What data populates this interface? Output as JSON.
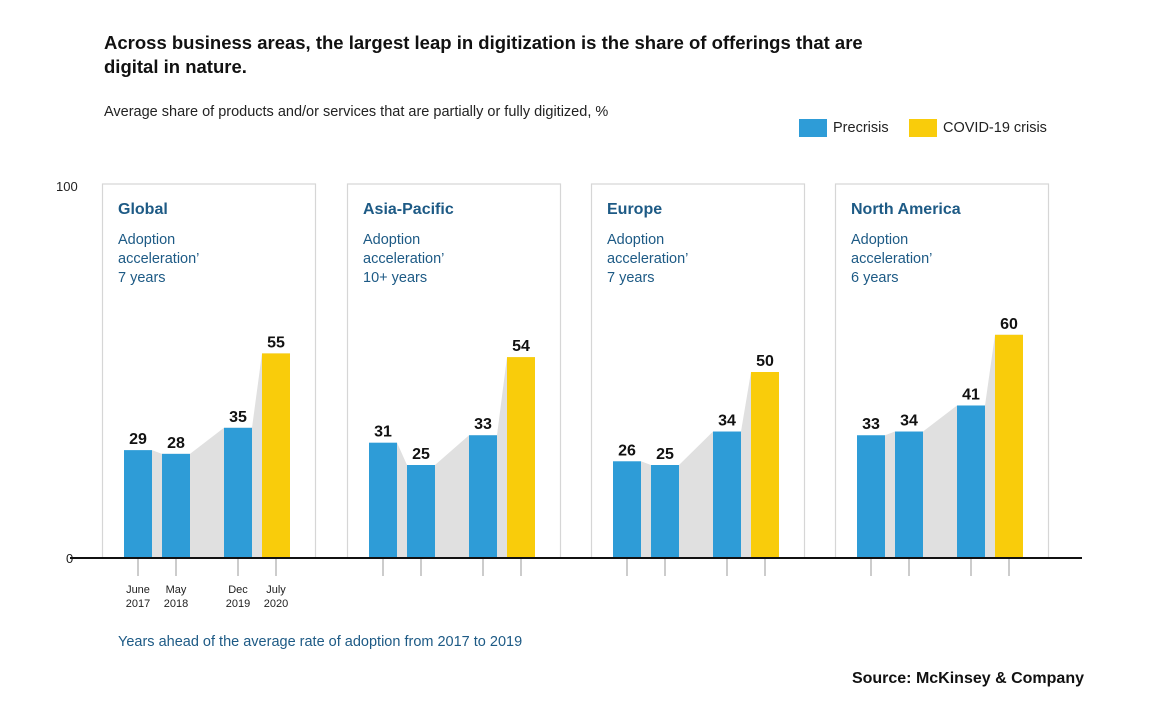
{
  "title": "Across business areas, the largest leap in digitization is the share of offerings that are digital in nature.",
  "subtitle": "Average share of products and/or services that are partially or fully digitized, %",
  "source": "Source: McKinsey & Company",
  "colors": {
    "precrisis": "#2e9cd7",
    "covid": "#f9cc0b",
    "area": "#e0e0e0",
    "panel_text": "#1d5a85"
  },
  "chart_data": {
    "type": "bar",
    "ylim": [
      0,
      100
    ],
    "y_ticks": [
      "0",
      "100"
    ],
    "legend": [
      {
        "name": "Precrisis",
        "color": "#2e9cd7"
      },
      {
        "name": "COVID-19 crisis",
        "color": "#f9cc0b"
      }
    ],
    "categories": [
      {
        "top": "June",
        "bottom": "2017"
      },
      {
        "top": "May",
        "bottom": "2018"
      },
      {
        "top": "Dec",
        "bottom": "2019"
      },
      {
        "top": "July",
        "bottom": "2020"
      }
    ],
    "footnote": "Years ahead of the average rate of adoption from 2017 to 2019",
    "series_meta": [
      "Precrisis",
      "Precrisis",
      "Precrisis",
      "COVID-19 crisis"
    ],
    "panels": [
      {
        "region": "Global",
        "line1": "Adoption",
        "line2": "acceleration’",
        "line3": "7 years",
        "values": [
          29,
          28,
          35,
          55
        ]
      },
      {
        "region": "Asia-Pacific",
        "line1": "Adoption",
        "line2": "acceleration’",
        "line3": "10+ years",
        "values": [
          31,
          25,
          33,
          54
        ]
      },
      {
        "region": "Europe",
        "line1": "Adoption",
        "line2": "acceleration’",
        "line3": "7 years",
        "values": [
          26,
          25,
          34,
          50
        ]
      },
      {
        "region": "North America",
        "line1": "Adoption",
        "line2": "acceleration’",
        "line3": "6 years",
        "values": [
          33,
          34,
          41,
          60
        ]
      }
    ]
  }
}
